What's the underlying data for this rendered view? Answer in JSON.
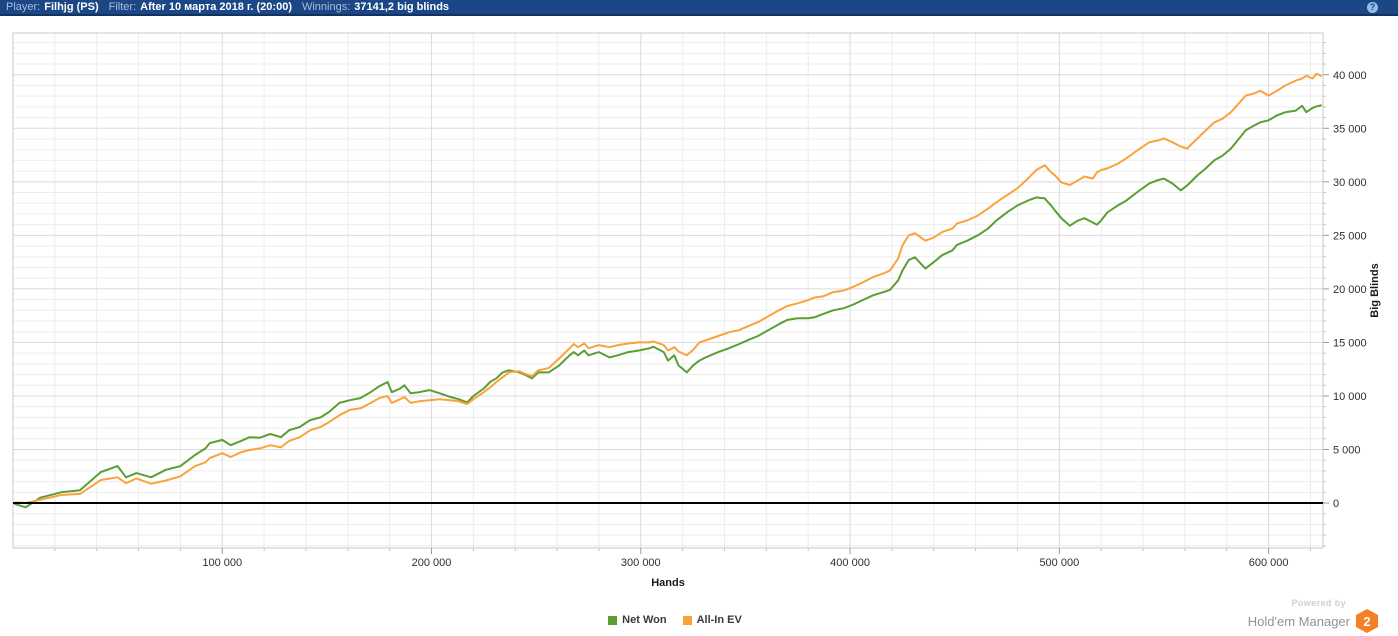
{
  "header": {
    "player_label": "Player:",
    "player_value": "Filhjg (PS)",
    "filter_label": "Filter:",
    "filter_value": "After 10 марта 2018 г. (20:00)",
    "winnings_label": "Winnings:",
    "winnings_value": "37141,2 big blinds",
    "help_icon": "?",
    "bg_color": "#1b4787"
  },
  "footer": {
    "powered_by": "Powered by",
    "brand": "Hold'em Manager",
    "badge": "2",
    "badge_color": "#f58025"
  },
  "colors": {
    "header_bg": "#1b4787",
    "grid_minor": "#ededed",
    "grid_major": "#dbdbdb",
    "plot_border": "#c8c8c8",
    "tick": "#9b9b9b",
    "tick_label": "#2f2f2f",
    "zero_line": "#000000"
  },
  "chart_data": {
    "type": "line",
    "title": "",
    "xlabel": "Hands",
    "ylabel": "Big Blinds",
    "x_range": [
      0,
      626000
    ],
    "y_range": [
      -4200,
      43900
    ],
    "x_minor_step": 20000,
    "y_minor_step": 1000,
    "legend_position": "bottom",
    "x_major_ticks": [
      {
        "value": 100000,
        "label": "100 000"
      },
      {
        "value": 200000,
        "label": "200 000"
      },
      {
        "value": 300000,
        "label": "300 000"
      },
      {
        "value": 400000,
        "label": "400 000"
      },
      {
        "value": 500000,
        "label": "500 000"
      },
      {
        "value": 600000,
        "label": "600 000"
      }
    ],
    "y_major_ticks": [
      {
        "value": 0,
        "label": "0"
      },
      {
        "value": 5000,
        "label": "5 000"
      },
      {
        "value": 10000,
        "label": "10 000"
      },
      {
        "value": 15000,
        "label": "15 000"
      },
      {
        "value": 20000,
        "label": "20 000"
      },
      {
        "value": 25000,
        "label": "25 000"
      },
      {
        "value": 30000,
        "label": "30 000"
      },
      {
        "value": 35000,
        "label": "35 000"
      },
      {
        "value": 40000,
        "label": "40 000"
      }
    ],
    "x": [
      1000,
      6000,
      13000,
      23000,
      32000,
      42000,
      50000,
      54000,
      59000,
      66000,
      73000,
      80000,
      87000,
      92000,
      94000,
      100000,
      104000,
      109000,
      113000,
      118000,
      123000,
      128000,
      132000,
      137000,
      142000,
      147000,
      151000,
      156000,
      161000,
      166000,
      170000,
      175000,
      179000,
      181000,
      185000,
      187000,
      190000,
      194000,
      199000,
      204000,
      209000,
      213000,
      217000,
      220000,
      225000,
      228000,
      231000,
      234000,
      237000,
      242000,
      245000,
      248000,
      251000,
      256000,
      261000,
      266000,
      268000,
      270000,
      273000,
      275000,
      280000,
      285000,
      289000,
      294000,
      299000,
      304000,
      306000,
      311000,
      313000,
      316000,
      318000,
      322000,
      325000,
      328000,
      331000,
      337000,
      342000,
      347000,
      351000,
      356000,
      361000,
      366000,
      370000,
      375000,
      380000,
      383000,
      387000,
      392000,
      397000,
      401000,
      406000,
      411000,
      416000,
      419000,
      423000,
      425000,
      428000,
      431000,
      436000,
      440000,
      444000,
      449000,
      451000,
      456000,
      461000,
      466000,
      470000,
      475000,
      480000,
      485000,
      489000,
      493000,
      496000,
      498000,
      501000,
      505000,
      509000,
      512000,
      516000,
      518000,
      520000,
      523000,
      528000,
      532000,
      537000,
      543000,
      547000,
      550000,
      554000,
      558000,
      561000,
      566000,
      570000,
      574000,
      578000,
      582000,
      587000,
      589000,
      593000,
      596000,
      600000,
      604000,
      608000,
      613000,
      616000,
      618000,
      621000,
      623000,
      625000
    ],
    "series": [
      {
        "name": "Net Won",
        "color": "#5b9e34",
        "final_value": 37141.2,
        "values": [
          -100,
          -400,
          500,
          1000,
          1200,
          2900,
          3450,
          2400,
          2800,
          2400,
          3100,
          3450,
          4500,
          5100,
          5600,
          5900,
          5400,
          5800,
          6150,
          6100,
          6450,
          6150,
          6800,
          7100,
          7750,
          8000,
          8500,
          9350,
          9600,
          9800,
          10250,
          10900,
          11300,
          10350,
          10700,
          11000,
          10250,
          10350,
          10550,
          10250,
          9900,
          9700,
          9400,
          10000,
          10700,
          11300,
          11650,
          12200,
          12400,
          12200,
          11950,
          11650,
          12200,
          12200,
          12850,
          13800,
          14100,
          13800,
          14250,
          13800,
          14100,
          13600,
          13800,
          14100,
          14250,
          14450,
          14600,
          14100,
          13300,
          13800,
          12850,
          12200,
          12850,
          13300,
          13600,
          14100,
          14450,
          14850,
          15200,
          15600,
          16150,
          16700,
          17100,
          17250,
          17250,
          17350,
          17650,
          18000,
          18200,
          18500,
          18950,
          19400,
          19700,
          19900,
          20800,
          21700,
          22700,
          22950,
          21900,
          22500,
          23150,
          23600,
          24100,
          24500,
          25000,
          25650,
          26400,
          27150,
          27800,
          28250,
          28550,
          28450,
          27800,
          27300,
          26600,
          25900,
          26400,
          26600,
          26200,
          26000,
          26400,
          27150,
          27800,
          28250,
          29000,
          29850,
          30150,
          30300,
          29850,
          29200,
          29650,
          30600,
          31250,
          32000,
          32450,
          33100,
          34300,
          34800,
          35250,
          35550,
          35750,
          36200,
          36500,
          36650,
          37100,
          36500,
          36900,
          37050,
          37141
        ]
      },
      {
        "name": "All-In EV",
        "color": "#fba23b",
        "values": [
          50,
          0,
          300,
          750,
          850,
          2150,
          2400,
          1850,
          2300,
          1800,
          2100,
          2500,
          3450,
          3800,
          4200,
          4650,
          4300,
          4750,
          4950,
          5100,
          5400,
          5200,
          5800,
          6150,
          6800,
          7100,
          7550,
          8200,
          8700,
          8850,
          9250,
          9800,
          10000,
          9350,
          9700,
          9900,
          9350,
          9500,
          9600,
          9700,
          9600,
          9500,
          9250,
          9700,
          10350,
          10800,
          11300,
          11750,
          12200,
          12300,
          12050,
          11850,
          12400,
          12600,
          13500,
          14450,
          14850,
          14550,
          14900,
          14450,
          14750,
          14550,
          14750,
          14900,
          15000,
          15000,
          15100,
          14750,
          14250,
          14550,
          14150,
          13800,
          14300,
          15000,
          15200,
          15600,
          15950,
          16150,
          16500,
          16900,
          17450,
          18000,
          18400,
          18650,
          18950,
          19200,
          19300,
          19700,
          19850,
          20150,
          20600,
          21100,
          21450,
          21700,
          22850,
          24050,
          25000,
          25200,
          24500,
          24800,
          25300,
          25650,
          26100,
          26400,
          26850,
          27500,
          28100,
          28750,
          29400,
          30300,
          31100,
          31550,
          30900,
          30600,
          29950,
          29700,
          30150,
          30500,
          30300,
          30900,
          31100,
          31250,
          31700,
          32200,
          32900,
          33700,
          33850,
          34050,
          33700,
          33300,
          33100,
          34050,
          34800,
          35550,
          35900,
          36500,
          37600,
          38050,
          38250,
          38500,
          38050,
          38500,
          39000,
          39450,
          39650,
          39900,
          39650,
          40100,
          39900
        ]
      }
    ]
  }
}
